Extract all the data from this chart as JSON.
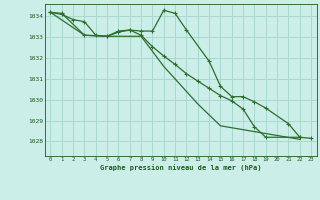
{
  "title": "Graphe pression niveau de la mer (hPa)",
  "background_color": "#cceee8",
  "grid_color": "#a8d8d0",
  "line_color": "#2d6e2d",
  "text_color": "#1a5c1a",
  "xlim": [
    -0.5,
    23.5
  ],
  "ylim": [
    1027.3,
    1034.6
  ],
  "yticks": [
    1028,
    1029,
    1030,
    1031,
    1032,
    1033,
    1034
  ],
  "xticks": [
    0,
    1,
    2,
    3,
    4,
    5,
    6,
    7,
    8,
    9,
    10,
    11,
    12,
    13,
    14,
    15,
    16,
    17,
    18,
    19,
    20,
    21,
    22,
    23
  ],
  "series1_x": [
    0,
    1,
    2,
    3,
    4,
    5,
    6,
    7,
    8,
    9,
    10,
    11,
    12,
    14,
    15,
    16,
    17,
    18,
    19,
    21,
    22,
    23
  ],
  "series1_y": [
    1034.2,
    1034.1,
    1033.85,
    1033.75,
    1033.1,
    1033.05,
    1033.25,
    1033.35,
    1033.3,
    1033.3,
    1034.3,
    1034.15,
    1033.35,
    1031.85,
    1030.65,
    1030.15,
    1030.15,
    1029.9,
    1029.6,
    1028.85,
    1028.2,
    1028.15
  ],
  "series2_x": [
    0,
    1,
    3,
    5,
    6,
    7,
    8,
    9,
    10,
    11,
    12,
    13,
    14,
    15,
    16,
    17,
    18,
    19,
    22
  ],
  "series2_y": [
    1034.2,
    1034.15,
    1033.1,
    1033.05,
    1033.3,
    1033.35,
    1033.1,
    1032.55,
    1032.1,
    1031.7,
    1031.25,
    1030.9,
    1030.55,
    1030.2,
    1029.95,
    1029.55,
    1028.7,
    1028.2,
    1028.2
  ],
  "series3_x": [
    0,
    3,
    5,
    8,
    10,
    12,
    13,
    15,
    22
  ],
  "series3_y": [
    1034.2,
    1033.1,
    1033.05,
    1033.05,
    1031.6,
    1030.4,
    1029.8,
    1028.75,
    1028.1
  ]
}
